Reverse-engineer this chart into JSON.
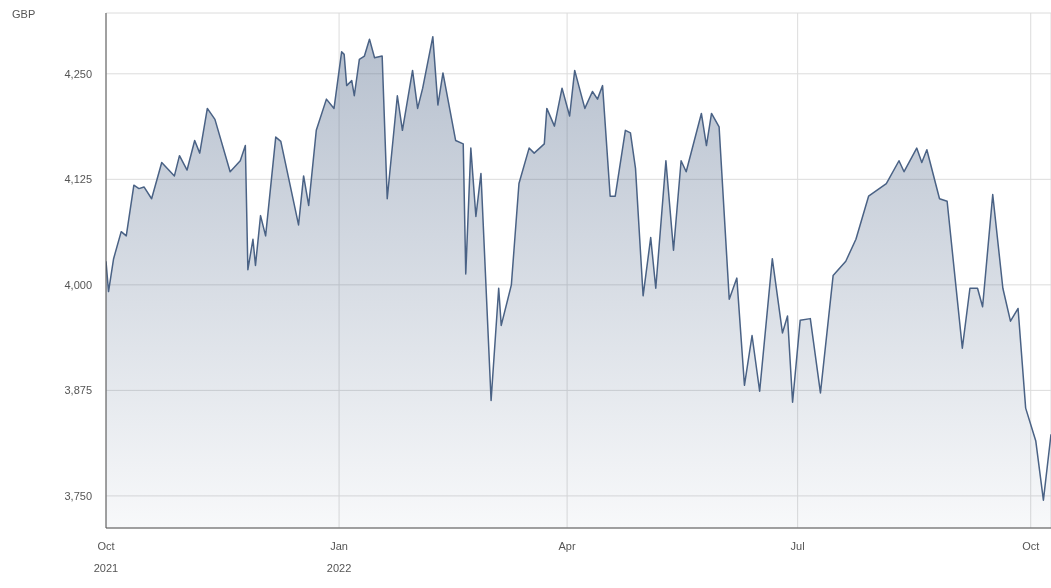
{
  "chart_data": {
    "type": "area",
    "ylabel": "GBP",
    "color": "#4a6285",
    "grid": true,
    "marker": "none",
    "line_style": "solid",
    "xlim": [
      "2021-10-01",
      "2022-10-09"
    ],
    "xticks": [
      {
        "value": "2021-10-01",
        "label": "Oct\n2021"
      },
      {
        "value": "2022-01-01",
        "label": "Jan\n2022"
      },
      {
        "value": "2022-04-01",
        "label": "Apr"
      },
      {
        "value": "2022-07-01",
        "label": "Jul"
      },
      {
        "value": "2022-10-01",
        "label": "Oct"
      }
    ],
    "ylim": [
      3712,
      4322
    ],
    "yticks": [
      {
        "value": 3750,
        "label": "3,750"
      },
      {
        "value": 3875,
        "label": "3,875"
      },
      {
        "value": 4000,
        "label": "4,000"
      },
      {
        "value": 4125,
        "label": "4,125"
      },
      {
        "value": 4250,
        "label": "4,250"
      }
    ],
    "x": [
      "2021-10-01",
      "2021-10-02",
      "2021-10-04",
      "2021-10-07",
      "2021-10-09",
      "2021-10-12",
      "2021-10-14",
      "2021-10-16",
      "2021-10-19",
      "2021-10-23",
      "2021-10-28",
      "2021-10-30",
      "2021-11-02",
      "2021-11-05",
      "2021-11-07",
      "2021-11-10",
      "2021-11-13",
      "2021-11-19",
      "2021-11-23",
      "2021-11-25",
      "2021-11-26",
      "2021-11-28",
      "2021-11-29",
      "2021-12-01",
      "2021-12-03",
      "2021-12-07",
      "2021-12-09",
      "2021-12-16",
      "2021-12-18",
      "2021-12-20",
      "2021-12-23",
      "2021-12-27",
      "2021-12-30",
      "2022-01-02",
      "2022-01-03",
      "2022-01-04",
      "2022-01-06",
      "2022-01-07",
      "2022-01-09",
      "2022-01-11",
      "2022-01-13",
      "2022-01-15",
      "2022-01-18",
      "2022-01-20",
      "2022-01-24",
      "2022-01-26",
      "2022-01-30",
      "2022-02-01",
      "2022-02-03",
      "2022-02-07",
      "2022-02-09",
      "2022-02-11",
      "2022-02-16",
      "2022-02-19",
      "2022-02-20",
      "2022-02-22",
      "2022-02-24",
      "2022-02-26",
      "2022-03-02",
      "2022-03-05",
      "2022-03-06",
      "2022-03-10",
      "2022-03-13",
      "2022-03-17",
      "2022-03-19",
      "2022-03-23",
      "2022-03-24",
      "2022-03-27",
      "2022-03-30",
      "2022-04-02",
      "2022-04-04",
      "2022-04-08",
      "2022-04-11",
      "2022-04-13",
      "2022-04-15",
      "2022-04-18",
      "2022-04-20",
      "2022-04-24",
      "2022-04-26",
      "2022-04-28",
      "2022-05-01",
      "2022-05-04",
      "2022-05-06",
      "2022-05-10",
      "2022-05-13",
      "2022-05-16",
      "2022-05-18",
      "2022-05-24",
      "2022-05-26",
      "2022-05-28",
      "2022-05-31",
      "2022-06-04",
      "2022-06-07",
      "2022-06-10",
      "2022-06-13",
      "2022-06-16",
      "2022-06-21",
      "2022-06-25",
      "2022-06-27",
      "2022-06-29",
      "2022-07-02",
      "2022-07-06",
      "2022-07-10",
      "2022-07-15",
      "2022-07-20",
      "2022-07-24",
      "2022-07-29",
      "2022-08-05",
      "2022-08-10",
      "2022-08-12",
      "2022-08-17",
      "2022-08-19",
      "2022-08-21",
      "2022-08-26",
      "2022-08-29",
      "2022-09-04",
      "2022-09-07",
      "2022-09-10",
      "2022-09-12",
      "2022-09-16",
      "2022-09-20",
      "2022-09-23",
      "2022-09-26",
      "2022-09-29",
      "2022-10-03",
      "2022-10-06",
      "2022-10-09"
    ],
    "values": [
      4028,
      3992,
      4031,
      4063,
      4058,
      4118,
      4114,
      4116,
      4102,
      4145,
      4129,
      4153,
      4136,
      4171,
      4156,
      4209,
      4196,
      4134,
      4147,
      4165,
      4018,
      4054,
      4023,
      4082,
      4058,
      4175,
      4170,
      4071,
      4129,
      4094,
      4183,
      4220,
      4209,
      4276,
      4273,
      4236,
      4242,
      4224,
      4267,
      4271,
      4291,
      4269,
      4271,
      4102,
      4224,
      4183,
      4254,
      4209,
      4233,
      4294,
      4213,
      4251,
      4171,
      4167,
      4013,
      4162,
      4081,
      4132,
      3863,
      3996,
      3952,
      4000,
      4120,
      4162,
      4156,
      4167,
      4209,
      4188,
      4233,
      4200,
      4254,
      4209,
      4229,
      4220,
      4236,
      4105,
      4105,
      4183,
      4180,
      4138,
      3987,
      4056,
      3996,
      4147,
      4041,
      4147,
      4134,
      4203,
      4165,
      4203,
      4187,
      3983,
      4008,
      3881,
      3940,
      3874,
      4031,
      3943,
      3963,
      3861,
      3958,
      3960,
      3872,
      4011,
      4028,
      4054,
      4105,
      4120,
      4147,
      4134,
      4162,
      4145,
      4160,
      4102,
      4099,
      3925,
      3996,
      3996,
      3974,
      4107,
      3996,
      3957,
      3972,
      3854,
      3815,
      3745,
      3823
    ]
  }
}
